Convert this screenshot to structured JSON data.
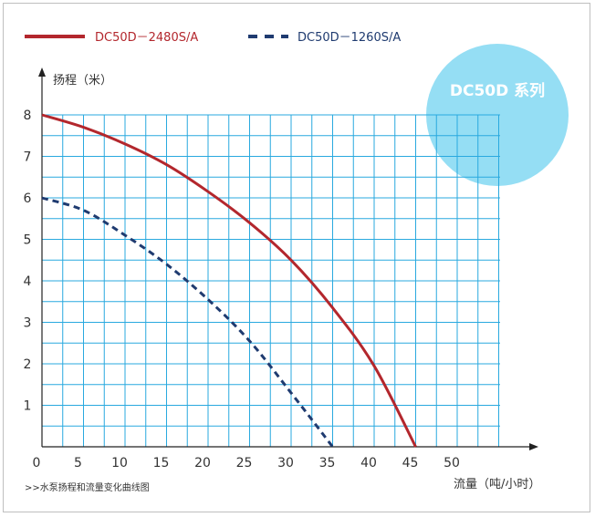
{
  "chart_data": {
    "type": "line",
    "xlabel": "流量（吨/小时）",
    "ylabel": "扬程（米）",
    "xlim": [
      0,
      55
    ],
    "ylim": [
      0,
      8
    ],
    "x_ticks": [
      0,
      5,
      10,
      15,
      20,
      25,
      30,
      35,
      40,
      45,
      50
    ],
    "y_ticks": [
      1,
      2,
      3,
      4,
      5,
      6,
      7,
      8
    ],
    "grid": true,
    "legend_position": "top-left",
    "badge": "DC50D 系列",
    "footnote": ">>水泵扬程和流量变化曲线图",
    "series": [
      {
        "name": "DC50D－2480S/A",
        "color": "#b3272d",
        "line_style": "solid",
        "x": [
          0,
          5,
          10,
          15,
          20,
          25,
          30,
          35,
          40,
          45
        ],
        "y": [
          8.0,
          7.7,
          7.3,
          6.8,
          6.15,
          5.4,
          4.5,
          3.35,
          1.95,
          0
        ]
      },
      {
        "name": "DC50D－1260S/A",
        "color": "#1f3b70",
        "line_style": "dashed",
        "x": [
          0,
          5,
          10,
          15,
          20,
          25,
          30,
          35
        ],
        "y": [
          6.0,
          5.7,
          5.1,
          4.4,
          3.55,
          2.55,
          1.3,
          0
        ]
      }
    ]
  }
}
